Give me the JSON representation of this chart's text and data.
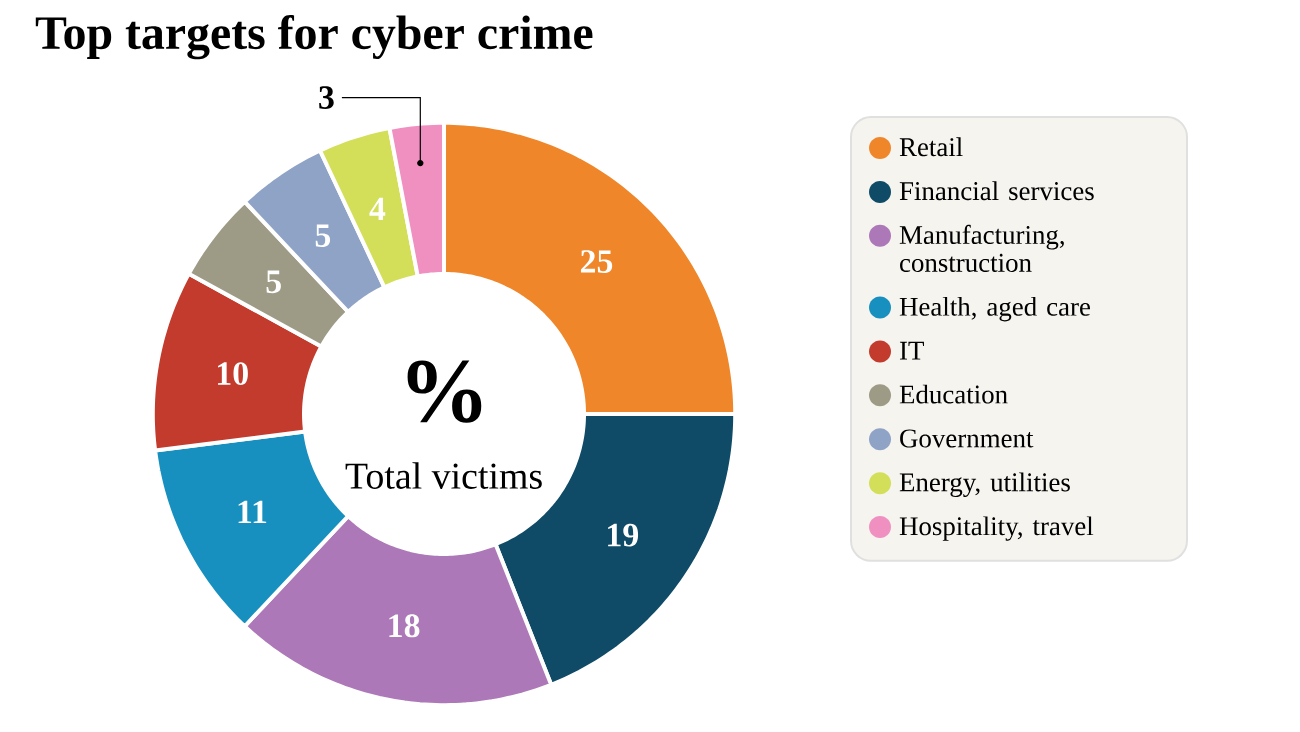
{
  "chart_data": {
    "type": "donut",
    "title": "Top targets for cyber crime",
    "categories": [
      "Retail",
      "Financial services",
      "Manufacturing, construction",
      "Health, aged care",
      "IT",
      "Education",
      "Government",
      "Energy, utilities",
      "Hospitality, travel"
    ],
    "values": [
      25,
      19,
      18,
      11,
      10,
      5,
      5,
      4,
      3
    ],
    "colors": [
      "#f0862a",
      "#0f4a66",
      "#ad78b8",
      "#1790c0",
      "#c23b2d",
      "#9d9a86",
      "#8ea3c6",
      "#d3df58",
      "#f090c0"
    ],
    "annotations": [
      "%",
      "Total victims"
    ],
    "data_labels": true,
    "legend": "right"
  }
}
